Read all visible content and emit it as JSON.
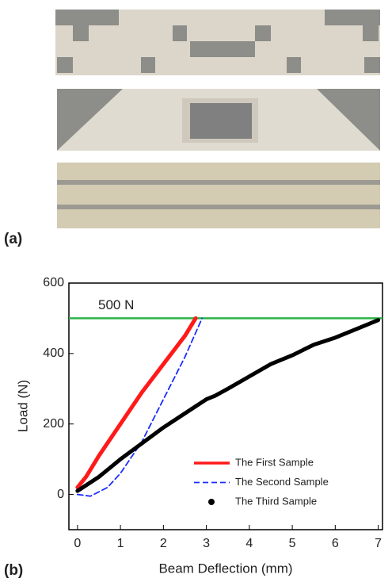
{
  "panel_labels": [
    "(a)",
    "(b)"
  ],
  "chart_data": {
    "type": "line",
    "x_label": "Beam Deflection (mm)",
    "y_label": "Load (N)",
    "annotation": "500 N",
    "reference_line": {
      "value": 500,
      "color": "#2db24a"
    },
    "xlim": [
      -0.2,
      7.1
    ],
    "xticks": [
      0,
      1,
      2,
      3,
      4,
      5,
      6,
      7
    ],
    "ylim": [
      -100,
      600
    ],
    "yticks": [
      0,
      200,
      400,
      600
    ],
    "legend": "lower right",
    "series": [
      {
        "name": "The First Sample",
        "color": "#ff1a1a",
        "style": "solid",
        "x": [
          0,
          0.2,
          0.5,
          1,
          1.5,
          2,
          2.5,
          2.75
        ],
        "values": [
          20,
          50,
          110,
          200,
          290,
          370,
          450,
          500
        ]
      },
      {
        "name": "The Second Sample",
        "color": "#1a2cff",
        "style": "dashed",
        "x": [
          0,
          0.3,
          0.7,
          1,
          1.5,
          2,
          2.5,
          2.9
        ],
        "values": [
          0,
          -5,
          20,
          60,
          150,
          270,
          390,
          500
        ]
      },
      {
        "name": "The Third Sample",
        "color": "#000000",
        "style": "dots",
        "x": [
          0,
          0.5,
          1,
          1.5,
          2,
          2.5,
          3,
          3.2,
          3.5,
          4,
          4.5,
          5,
          5.5,
          6,
          6.5,
          7
        ],
        "values": [
          10,
          50,
          100,
          145,
          190,
          230,
          270,
          280,
          300,
          335,
          370,
          395,
          425,
          445,
          470,
          495
        ]
      }
    ]
  }
}
